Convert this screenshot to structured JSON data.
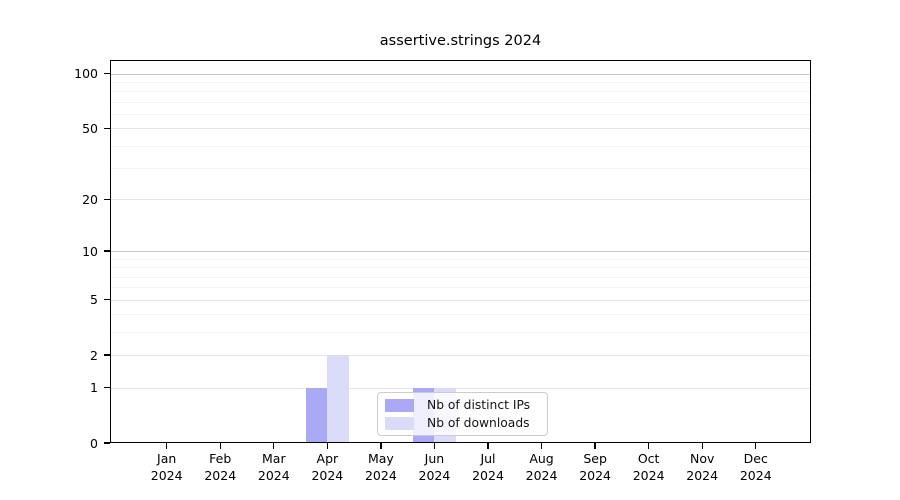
{
  "chart_data": {
    "type": "bar",
    "title": "assertive.strings 2024",
    "categories": [
      {
        "month": "Jan",
        "year": "2024"
      },
      {
        "month": "Feb",
        "year": "2024"
      },
      {
        "month": "Mar",
        "year": "2024"
      },
      {
        "month": "Apr",
        "year": "2024"
      },
      {
        "month": "May",
        "year": "2024"
      },
      {
        "month": "Jun",
        "year": "2024"
      },
      {
        "month": "Jul",
        "year": "2024"
      },
      {
        "month": "Aug",
        "year": "2024"
      },
      {
        "month": "Sep",
        "year": "2024"
      },
      {
        "month": "Oct",
        "year": "2024"
      },
      {
        "month": "Nov",
        "year": "2024"
      },
      {
        "month": "Dec",
        "year": "2024"
      }
    ],
    "series": [
      {
        "name": "Nb of distinct IPs",
        "color": "#a9a9f8",
        "values": [
          0,
          0,
          0,
          1,
          0,
          1,
          0,
          0,
          0,
          0,
          0,
          0
        ]
      },
      {
        "name": "Nb of downloads",
        "color": "#dadaf9",
        "values": [
          0,
          0,
          0,
          2,
          0,
          1,
          0,
          0,
          0,
          0,
          0,
          0
        ]
      }
    ],
    "yscale": "log1p",
    "ylim": [
      0,
      113
    ],
    "yticks": [
      0,
      1,
      2,
      5,
      10,
      20,
      50,
      100
    ],
    "minor_gridlines": [
      3,
      4,
      6,
      7,
      8,
      9,
      30,
      40,
      60,
      70,
      80,
      90
    ],
    "grid_colors": {
      "decade": "#c9c9c9",
      "labeled": "#e6e6e6",
      "minor": "#f3f3f3"
    },
    "axis_color": "#000000",
    "legend_position": "inside-bottom-center",
    "grid": "horizontal"
  }
}
